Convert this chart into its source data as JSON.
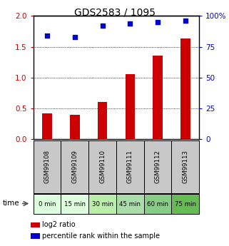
{
  "title": "GDS2583 / 1095",
  "samples": [
    "GSM99108",
    "GSM99109",
    "GSM99110",
    "GSM99111",
    "GSM99112",
    "GSM99113"
  ],
  "time_labels": [
    "0 min",
    "15 min",
    "30 min",
    "45 min",
    "60 min",
    "75 min"
  ],
  "log2_ratio": [
    0.42,
    0.39,
    0.6,
    1.05,
    1.35,
    1.63
  ],
  "percentile_rank": [
    84,
    83,
    92,
    94,
    95,
    96
  ],
  "bar_color": "#cc0000",
  "dot_color": "#0000cc",
  "left_axis_color": "#cc0000",
  "right_axis_color": "#0000cc",
  "ylim_left": [
    0,
    2.0
  ],
  "ylim_right": [
    0,
    100
  ],
  "left_ticks": [
    0,
    0.5,
    1.0,
    1.5,
    2.0
  ],
  "right_ticks": [
    0,
    25,
    50,
    75,
    100
  ],
  "right_tick_labels": [
    "0",
    "25",
    "50",
    "75",
    "100%"
  ],
  "grid_values": [
    0.5,
    1.0,
    1.5
  ],
  "time_colors": [
    "#ddffdd",
    "#ddffdd",
    "#bbeeaa",
    "#aaddaa",
    "#88cc88",
    "#66bb55"
  ],
  "sample_bg_color": "#c8c8c8",
  "bar_width": 0.35,
  "legend_label_red": "log2 ratio",
  "legend_label_blue": "percentile rank within the sample",
  "fig_width": 3.21,
  "fig_height": 3.45,
  "dpi": 100
}
